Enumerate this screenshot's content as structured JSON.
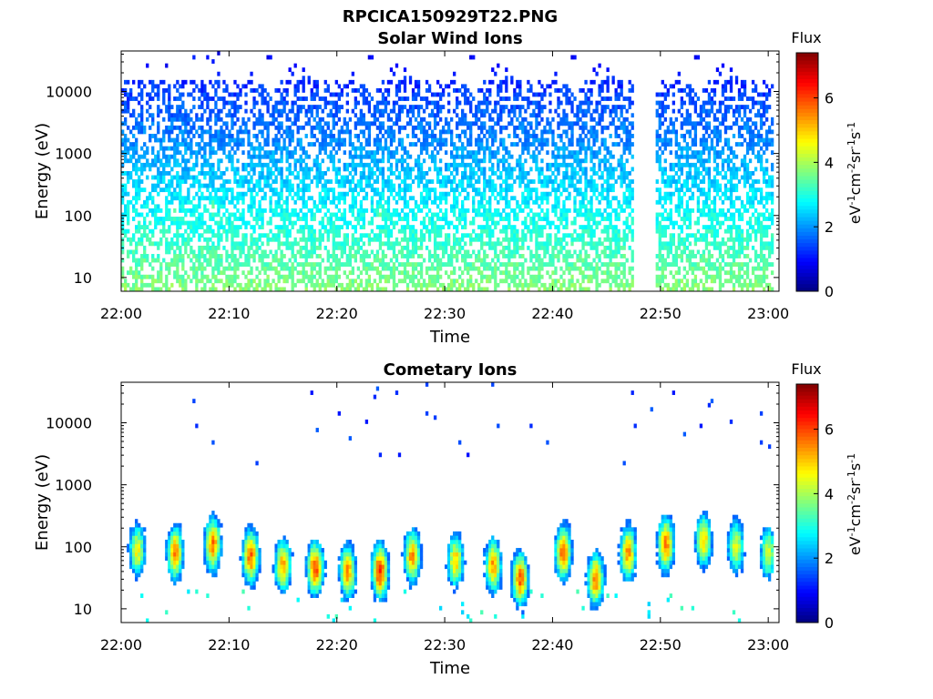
{
  "figure_title": "RPCICA150929T22.PNG",
  "colors": {
    "axis": "#000000",
    "background": "#ffffff"
  },
  "chart_data": [
    {
      "type": "heatmap",
      "title": "Solar Wind Ions",
      "xlabel": "Time",
      "ylabel": "Energy (eV)",
      "yscale": "log",
      "xlim": [
        "22:00",
        "23:01"
      ],
      "ylim": [
        6,
        45000
      ],
      "xticks": [
        "22:00",
        "22:10",
        "22:20",
        "22:30",
        "22:40",
        "22:50",
        "23:00"
      ],
      "yticks": [
        "10",
        "100",
        "1000",
        "10000"
      ],
      "colorbar": {
        "label_top": "Flux",
        "unit": "eV-1cm-2sr-1s-1",
        "ticks": [
          "0",
          "2",
          "4",
          "6"
        ],
        "range": [
          0,
          7.4
        ],
        "colormap": "jet"
      },
      "data_gap": [
        "22:47.5",
        "22:49.5"
      ],
      "hotspots": [
        {
          "time": "22:05",
          "energy": 110,
          "flux": 3.6
        },
        {
          "time": "22:08.5",
          "energy": 130,
          "flux": 3.5
        },
        {
          "time": "22:18",
          "energy": 80,
          "flux": 3.4
        },
        {
          "time": "22:24",
          "energy": 110,
          "flux": 3.5
        },
        {
          "time": "22:31",
          "energy": 90,
          "flux": 3.1
        },
        {
          "time": "22:45",
          "energy": 70,
          "flux": 3.1
        },
        {
          "time": "22:53",
          "energy": 100,
          "flux": 3.2
        }
      ]
    },
    {
      "type": "heatmap",
      "title": "Cometary Ions",
      "xlabel": "Time",
      "ylabel": "Energy (eV)",
      "yscale": "log",
      "xlim": [
        "22:00",
        "23:01"
      ],
      "ylim": [
        6,
        45000
      ],
      "xticks": [
        "22:00",
        "22:10",
        "22:20",
        "22:30",
        "22:40",
        "22:50",
        "23:00"
      ],
      "yticks": [
        "10",
        "100",
        "1000",
        "10000"
      ],
      "colorbar": {
        "label_top": "Flux",
        "unit": "eV-1cm-2sr-1s-1",
        "ticks": [
          "0",
          "2",
          "4",
          "6"
        ],
        "range": [
          0,
          7.4
        ],
        "colormap": "jet"
      },
      "bursts": [
        {
          "time": "22:01.5",
          "peak_energy": 90,
          "peak_flux": 4.6
        },
        {
          "time": "22:05",
          "peak_energy": 80,
          "peak_flux": 5.6
        },
        {
          "time": "22:08.5",
          "peak_energy": 110,
          "peak_flux": 5.6
        },
        {
          "time": "22:12",
          "peak_energy": 70,
          "peak_flux": 5.8
        },
        {
          "time": "22:15",
          "peak_energy": 50,
          "peak_flux": 5.2
        },
        {
          "time": "22:18",
          "peak_energy": 45,
          "peak_flux": 6.0
        },
        {
          "time": "22:21",
          "peak_energy": 40,
          "peak_flux": 5.4
        },
        {
          "time": "22:24",
          "peak_energy": 40,
          "peak_flux": 6.2
        },
        {
          "time": "22:27",
          "peak_energy": 70,
          "peak_flux": 5.4
        },
        {
          "time": "22:31",
          "peak_energy": 60,
          "peak_flux": 5.0
        },
        {
          "time": "22:34.5",
          "peak_energy": 50,
          "peak_flux": 5.3
        },
        {
          "time": "22:37",
          "peak_energy": 30,
          "peak_flux": 5.8
        },
        {
          "time": "22:41",
          "peak_energy": 80,
          "peak_flux": 5.8
        },
        {
          "time": "22:44",
          "peak_energy": 30,
          "peak_flux": 5.6
        },
        {
          "time": "22:47",
          "peak_energy": 80,
          "peak_flux": 5.4
        },
        {
          "time": "22:50.5",
          "peak_energy": 110,
          "peak_flux": 5.7
        },
        {
          "time": "22:54",
          "peak_energy": 130,
          "peak_flux": 5.0
        },
        {
          "time": "22:57",
          "peak_energy": 100,
          "peak_flux": 4.6
        },
        {
          "time": "23:00",
          "peak_energy": 80,
          "peak_flux": 4.4
        }
      ]
    }
  ]
}
